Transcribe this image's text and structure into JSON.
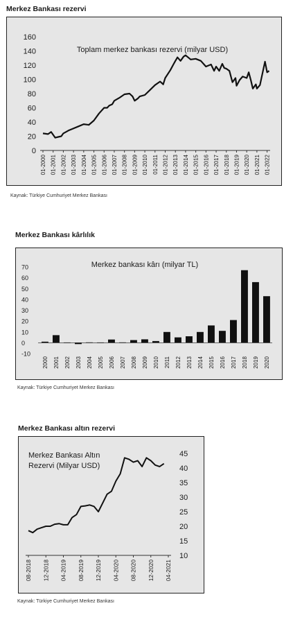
{
  "source_label": "Kaynak: Türkiye Cumhuriyet Merkez Bankası",
  "chart_data": [
    {
      "id": "reserves",
      "section_title": "Merkez Bankası rezervi",
      "type": "line",
      "title": "Toplam merkez bankası rezervi (milyar USD)",
      "xlabel": "",
      "ylabel": "",
      "ylim": [
        0,
        160
      ],
      "yticks": [
        0,
        20,
        40,
        60,
        80,
        100,
        120,
        140,
        160
      ],
      "xlim": [
        2000,
        2022.3
      ],
      "xticks": [
        "01-2000",
        "01-2001",
        "01-2002",
        "01-2003",
        "01-2004",
        "01-2005",
        "01-2006",
        "01-2007",
        "01-2008",
        "01-2009",
        "01-2010",
        "01-2011",
        "01-2012",
        "01-2013",
        "01-2014",
        "01-2015",
        "01-2016",
        "01-2017",
        "01-2018",
        "01-2019",
        "01-2020",
        "01-2021",
        "01-2022"
      ],
      "grid": false,
      "legend": "none",
      "color": "#111111",
      "series": [
        {
          "x": [
            2000,
            2000.5,
            2000.8,
            2001.0,
            2001.2,
            2001.5,
            2001.8,
            2002.0,
            2002.5,
            2003.0,
            2003.5,
            2004.0,
            2004.5,
            2005.0,
            2005.5,
            2006.0,
            2006.3,
            2006.5,
            2006.8,
            2007.0,
            2007.5,
            2008.0,
            2008.5,
            2008.8,
            2009.0,
            2009.3,
            2009.5,
            2010.0,
            2010.5,
            2011.0,
            2011.5,
            2011.8,
            2012.0,
            2012.5,
            2012.8,
            2013.0,
            2013.2,
            2013.5,
            2013.8,
            2014.0,
            2014.5,
            2015.0,
            2015.5,
            2016.0,
            2016.5,
            2016.8,
            2017.0,
            2017.3,
            2017.6,
            2017.8,
            2018.0,
            2018.3,
            2018.6,
            2018.9,
            2019.0,
            2019.3,
            2019.6,
            2020.0,
            2020.2,
            2020.4,
            2020.6,
            2020.9,
            2021.0,
            2021.3,
            2021.6,
            2021.8,
            2022.0,
            2022.2
          ],
          "y": [
            24,
            23,
            26,
            22,
            18,
            19,
            20,
            24,
            28,
            31,
            34,
            37,
            36,
            42,
            52,
            60,
            60,
            63,
            65,
            70,
            74,
            79,
            80,
            76,
            70,
            73,
            76,
            78,
            85,
            92,
            97,
            93,
            102,
            113,
            121,
            126,
            131,
            126,
            132,
            134,
            128,
            129,
            126,
            118,
            121,
            112,
            118,
            112,
            122,
            116,
            115,
            112,
            96,
            102,
            91,
            99,
            104,
            102,
            110,
            99,
            87,
            93,
            87,
            92,
            112,
            125,
            110,
            112
          ]
        }
      ]
    },
    {
      "id": "profit",
      "section_title": "Merkez Bankası kârlılık",
      "type": "bar",
      "title": "Merkez bankası kârı (milyar TL)",
      "xlabel": "",
      "ylabel": "",
      "ylim": [
        -10,
        70
      ],
      "yticks": [
        -10,
        0,
        10,
        20,
        30,
        40,
        50,
        60,
        70
      ],
      "grid": false,
      "legend": "none",
      "color": "#111111",
      "categories": [
        "2000",
        "2001",
        "2002",
        "2003",
        "2004",
        "2005",
        "2006",
        "2007",
        "2008",
        "2009",
        "2010",
        "2011",
        "2012",
        "2013",
        "2014",
        "2015",
        "2016",
        "2017",
        "2018",
        "2019",
        "2020"
      ],
      "values": [
        1,
        7,
        0.3,
        -1.2,
        0.4,
        0.3,
        3,
        0.4,
        2.5,
        3.2,
        1.6,
        10,
        5,
        6,
        10,
        16,
        11,
        21,
        67,
        56,
        43
      ]
    },
    {
      "id": "gold",
      "section_title": "Merkez Bankası altın rezervi",
      "type": "line",
      "title": "Merkez Bankası Altın Rezervi (Milyar USD)",
      "xlabel": "",
      "ylabel": "",
      "ylim": [
        10,
        45
      ],
      "yticks": [
        10,
        15,
        20,
        25,
        30,
        35,
        40,
        45
      ],
      "xlim": [
        0,
        32
      ],
      "xticks": [
        "08-2018",
        "12-2018",
        "04-2019",
        "08-2019",
        "12-2019",
        "04-2020",
        "08-2020",
        "12-2020",
        "04-2021"
      ],
      "grid": false,
      "legend": "none",
      "color": "#111111",
      "series": [
        {
          "x": [
            0,
            1,
            2,
            3,
            4,
            5,
            6,
            7,
            8,
            9,
            10,
            11,
            12,
            13,
            14,
            15,
            16,
            17,
            18,
            19,
            20,
            21,
            22,
            23,
            24,
            25,
            26,
            27,
            28,
            29,
            30,
            31
          ],
          "y": [
            18.5,
            17.8,
            19,
            19.5,
            20,
            20,
            20.7,
            20.9,
            20.5,
            20.5,
            23,
            24,
            26.8,
            27,
            27.3,
            26.8,
            25,
            28,
            31,
            32,
            35.5,
            38,
            43.5,
            43,
            42,
            42.5,
            40.5,
            43.5,
            42.5,
            41,
            40.5,
            41.5
          ]
        }
      ]
    }
  ]
}
